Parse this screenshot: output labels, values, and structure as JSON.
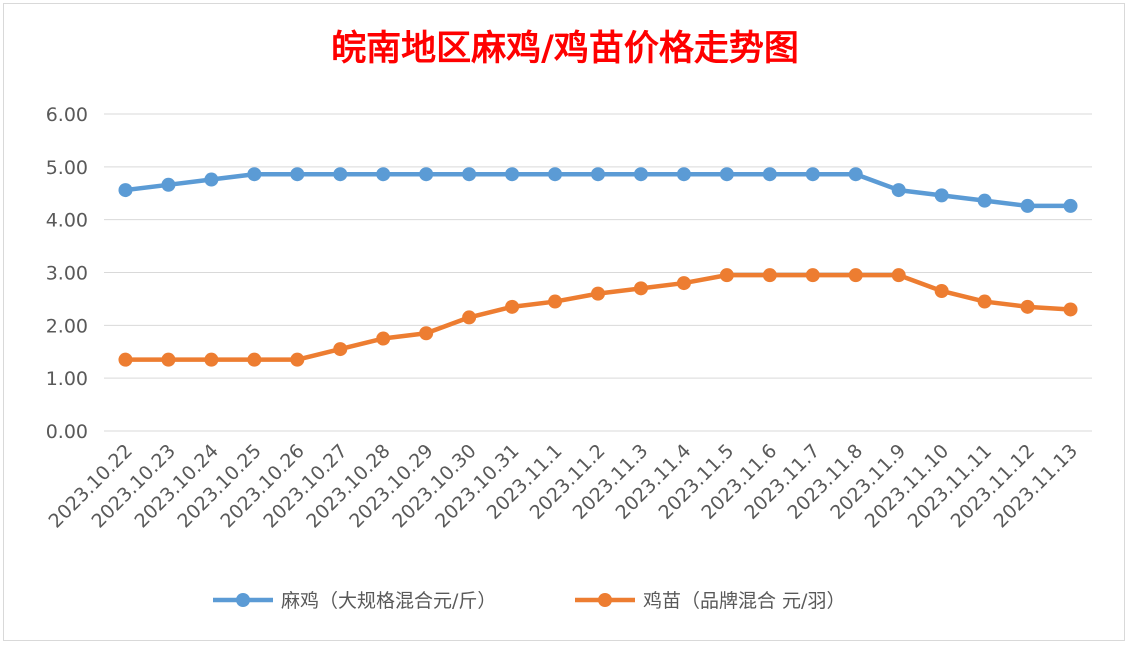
{
  "chart_data": {
    "type": "line",
    "title": "皖南地区麻鸡/鸡苗价格走势图",
    "title_color": "#ff0000",
    "categories": [
      "2023.10.22",
      "2023.10.23",
      "2023.10.24",
      "2023.10.25",
      "2023.10.26",
      "2023.10.27",
      "2023.10.28",
      "2023.10.29",
      "2023.10.30",
      "2023.10.31",
      "2023.11.1",
      "2023.11.2",
      "2023.11.3",
      "2023.11.4",
      "2023.11.5",
      "2023.11.6",
      "2023.11.7",
      "2023.11.8",
      "2023.11.9",
      "2023.11.10",
      "2023.11.11",
      "2023.11.12",
      "2023.11.13"
    ],
    "y_ticks": [
      "0.00",
      "1.00",
      "2.00",
      "3.00",
      "4.00",
      "5.00",
      "6.00"
    ],
    "ylim": [
      0,
      6
    ],
    "grid": true,
    "legend_position": "bottom",
    "series": [
      {
        "name": "麻鸡（大规格混合元/斤）",
        "color": "#5b9bd5",
        "values": [
          4.56,
          4.66,
          4.76,
          4.86,
          4.86,
          4.86,
          4.86,
          4.86,
          4.86,
          4.86,
          4.86,
          4.86,
          4.86,
          4.86,
          4.86,
          4.86,
          4.86,
          4.86,
          4.56,
          4.46,
          4.36,
          4.26,
          4.26
        ]
      },
      {
        "name": "鸡苗（品牌混合 元/羽）",
        "color": "#ed7d31",
        "values": [
          1.35,
          1.35,
          1.35,
          1.35,
          1.35,
          1.55,
          1.75,
          1.85,
          2.15,
          2.35,
          2.45,
          2.6,
          2.7,
          2.8,
          2.95,
          2.95,
          2.95,
          2.95,
          2.95,
          2.65,
          2.45,
          2.35,
          2.3
        ]
      }
    ]
  }
}
